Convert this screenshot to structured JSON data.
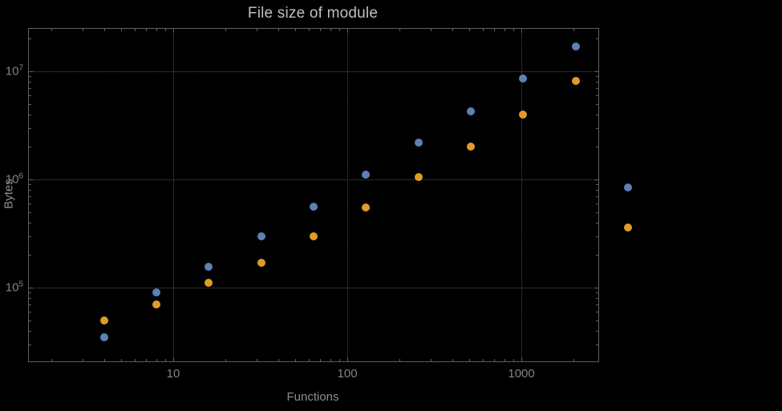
{
  "colors": {
    "background": "#000000",
    "frame": "#5f5f5f",
    "grid": "#4f4f4f",
    "tick_label": "#848484",
    "axis_label": "#8f8f8f",
    "title": "#bfbfbf",
    "series_blue": "#5E81B5",
    "series_orange": "#E19C24"
  },
  "chart_data": {
    "type": "scatter",
    "title": "File size of module",
    "xlabel": "Functions",
    "ylabel": "Bytes",
    "x_scale": "log",
    "y_scale": "log",
    "grid": true,
    "legend": "none",
    "xlim_log": [
      0.1705,
      3.442
    ],
    "ylim_log": [
      4.3185,
      7.393
    ],
    "x_tick_values": [
      10,
      100,
      1000
    ],
    "x_tick_labels": [
      "10",
      "100",
      "1000"
    ],
    "y_tick_values": [
      100000,
      1000000,
      10000000
    ],
    "y_tick_labels": [
      {
        "base": "10",
        "exp": "5"
      },
      {
        "base": "10",
        "exp": "6"
      },
      {
        "base": "10",
        "exp": "7"
      }
    ],
    "x": [
      4,
      8,
      16,
      32,
      64,
      128,
      256,
      512,
      1024,
      2048,
      4096
    ],
    "series": [
      {
        "name": "blue",
        "color": "#5E81B5",
        "values": [
          35000,
          90000,
          155000,
          300000,
          560000,
          1100000,
          2200000,
          4300000,
          8600000,
          17000000,
          850000
        ]
      },
      {
        "name": "orange",
        "color": "#E19C24",
        "values": [
          50000,
          70000,
          110000,
          170000,
          300000,
          550000,
          1050000,
          2000000,
          4000000,
          8200000,
          360000
        ]
      }
    ]
  }
}
